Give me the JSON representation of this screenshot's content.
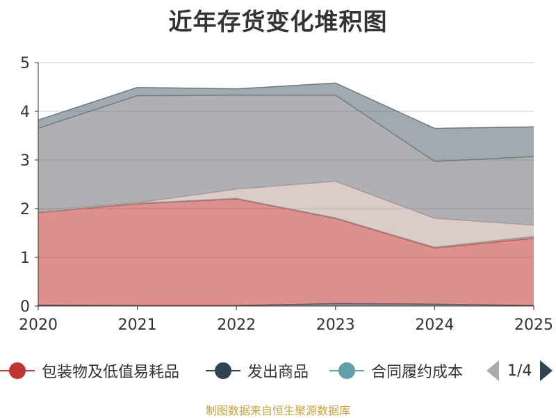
{
  "chart_data": {
    "type": "area",
    "stacked": true,
    "title": "近年存货变化堆积图",
    "x": [
      "2020",
      "2021",
      "2022",
      "2023",
      "2024",
      "2025"
    ],
    "ylim": [
      0,
      5
    ],
    "yticks": [
      0,
      1,
      2,
      3,
      4,
      5
    ],
    "grid": true,
    "legend_position": "bottom",
    "series": [
      {
        "name": "发出商品",
        "color": "#2f4554",
        "values": [
          0.02,
          0.01,
          0.01,
          0.05,
          0.04,
          0.01
        ]
      },
      {
        "name": "包装物及低值易耗品",
        "color": "#c23531",
        "values": [
          1.9,
          2.09,
          2.19,
          1.75,
          1.15,
          1.38
        ]
      },
      {
        "color": "#d48265",
        "values": [
          0.01,
          0.01,
          0.01,
          0.01,
          0.01,
          0.02
        ]
      },
      {
        "name": "合同履约成本",
        "color": "#61a0a8",
        "values": [
          0.0,
          0.0,
          0.0,
          0.0,
          0.01,
          0.02
        ]
      },
      {
        "color": "#bda29a",
        "values": [
          0.03,
          0.01,
          0.19,
          0.75,
          0.59,
          0.23
        ]
      },
      {
        "color": "#6e7074",
        "values": [
          1.69,
          2.2,
          1.93,
          1.77,
          1.17,
          1.41
        ]
      },
      {
        "color": "#546570",
        "values": [
          0.17,
          0.17,
          0.13,
          0.25,
          0.68,
          0.61
        ]
      }
    ]
  },
  "legend": {
    "items": [
      {
        "name": "包装物及低值易耗品",
        "color": "#c23531"
      },
      {
        "name": "发出商品",
        "color": "#2f4554"
      },
      {
        "name": "合同履约成本",
        "color": "#61a0a8"
      }
    ],
    "page": "1/4"
  },
  "source": "制图数据来自恒生聚源数据库"
}
